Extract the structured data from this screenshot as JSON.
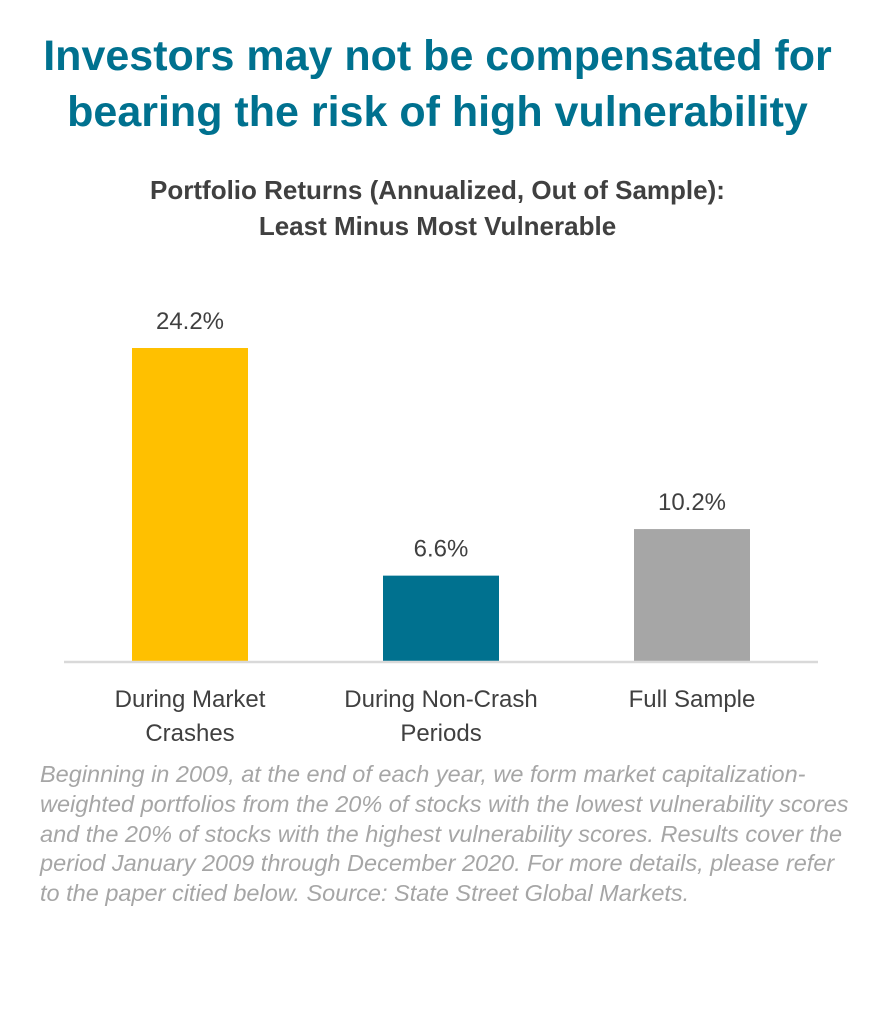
{
  "headline": {
    "line1": "Investors may not be compensated for",
    "line2": "bearing the risk of high vulnerability"
  },
  "colors": {
    "headline": "#00718f",
    "subtitle": "#404040",
    "axis_text": "#404040",
    "footnote": "#a6a6a6",
    "baseline": "#d9d9d9"
  },
  "chart_data": {
    "type": "bar",
    "title": "Portfolio Returns (Annualized, Out of Sample):",
    "subtitle": "Least Minus Most Vulnerable",
    "categories": [
      [
        "During Market",
        "Crashes"
      ],
      [
        "During Non-Crash",
        "Periods"
      ],
      [
        "Full Sample"
      ]
    ],
    "values": [
      24.2,
      6.6,
      10.2
    ],
    "data_labels": [
      "24.2%",
      "6.6%",
      "10.2%"
    ],
    "bar_colors": [
      "#ffc000",
      "#00718f",
      "#a6a6a6"
    ],
    "ylim": [
      0,
      24.2
    ],
    "xlabel": "",
    "ylabel": "",
    "grid": false,
    "legend": "none",
    "y_axis_visible": false
  },
  "footnote": "Beginning in 2009, at the end of each year, we form market capitalization-weighted portfolios from the 20% of stocks with the lowest vulnerability scores and the 20% of stocks with the highest vulnerability scores. Results cover the period January 2009 through December 2020. For more details, please refer to the paper citied below. Source: State Street Global Markets."
}
